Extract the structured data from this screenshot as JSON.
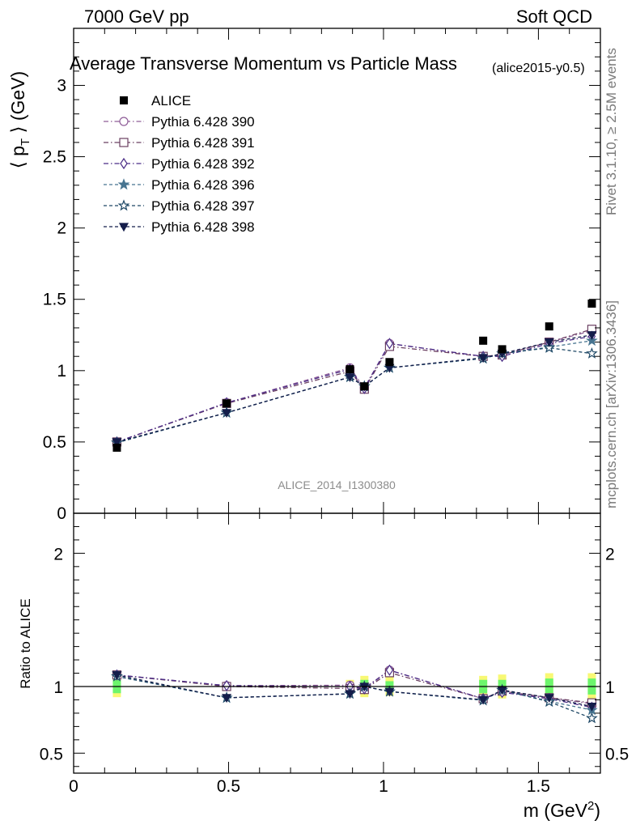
{
  "header": {
    "left": "7000 GeV pp",
    "right": "Soft QCD",
    "rivet": "Rivet 3.1.10, ≥ 2.5M events",
    "mcplots": "mcplots.cern.ch [arXiv:1306.3436]"
  },
  "colors": {
    "alice": "#000000",
    "p390": "#8f5d98",
    "p391": "#6b4062",
    "p392": "#4a2c86",
    "p396": "#477490",
    "p397": "#1e4866",
    "p398": "#141d4a",
    "band_inner": "#6cf56c",
    "band_outer": "#f8f874"
  },
  "chart_data": {
    "type": "scatter",
    "title": "Average Transverse Momentum vs Particle Mass",
    "subtitle": "(alice2015-y0.5)",
    "watermark": "ALICE_2014_I1300380",
    "xlabel": "m (GeV²)",
    "ylabel": "⟨ p_T ⟩ (GeV)",
    "ratio_ylabel": "Ratio to ALICE",
    "xlim": [
      0,
      1.7
    ],
    "ylim": [
      0,
      3.4
    ],
    "ratio_ylim": [
      0.35,
      2.3
    ],
    "x_ticks": [
      "0",
      "0.5",
      "1",
      "1.5"
    ],
    "y_ticks": [
      "0.5",
      "1",
      "1.5",
      "2",
      "2.5",
      "3"
    ],
    "ratio_ticks": [
      "0.5",
      "1",
      "2"
    ],
    "legend_position": "top-left",
    "x": [
      0.1396,
      0.4937,
      0.8917,
      0.9383,
      1.0195,
      1.3217,
      1.3829,
      1.5348,
      1.6724
    ],
    "data": {
      "name": "ALICE",
      "values": [
        0.46,
        0.77,
        1.01,
        0.89,
        1.06,
        1.21,
        1.15,
        1.31,
        1.47
      ],
      "band_inner": [
        0.05,
        0.02,
        0.03,
        0.05,
        0.04,
        0.05,
        0.05,
        0.06,
        0.06
      ],
      "band_outer": [
        0.08,
        0.03,
        0.05,
        0.08,
        0.07,
        0.08,
        0.09,
        0.1,
        0.1
      ]
    },
    "series": [
      {
        "name": "Pythia 6.428 390",
        "marker": "circle-open",
        "values": [
          0.5,
          0.775,
          1.02,
          0.88,
          1.19,
          1.1,
          1.11,
          1.2,
          1.28
        ]
      },
      {
        "name": "Pythia 6.428 391",
        "marker": "square-open",
        "values": [
          0.5,
          0.77,
          0.995,
          0.87,
          1.17,
          1.1,
          1.11,
          1.2,
          1.29
        ]
      },
      {
        "name": "Pythia 6.428 392",
        "marker": "diamond-open",
        "values": [
          0.5,
          0.775,
          1.01,
          0.875,
          1.19,
          1.1,
          1.1,
          1.19,
          1.24
        ]
      },
      {
        "name": "Pythia 6.428 396",
        "marker": "star-filled",
        "values": [
          0.495,
          0.705,
          0.955,
          0.89,
          1.02,
          1.085,
          1.12,
          1.165,
          1.21
        ]
      },
      {
        "name": "Pythia 6.428 397",
        "marker": "star-open",
        "values": [
          0.495,
          0.705,
          0.955,
          0.89,
          1.02,
          1.085,
          1.12,
          1.16,
          1.12
        ]
      },
      {
        "name": "Pythia 6.428 398",
        "marker": "triangle-down-filled",
        "values": [
          0.5,
          0.705,
          0.955,
          0.89,
          1.02,
          1.09,
          1.12,
          1.2,
          1.25
        ]
      }
    ]
  }
}
